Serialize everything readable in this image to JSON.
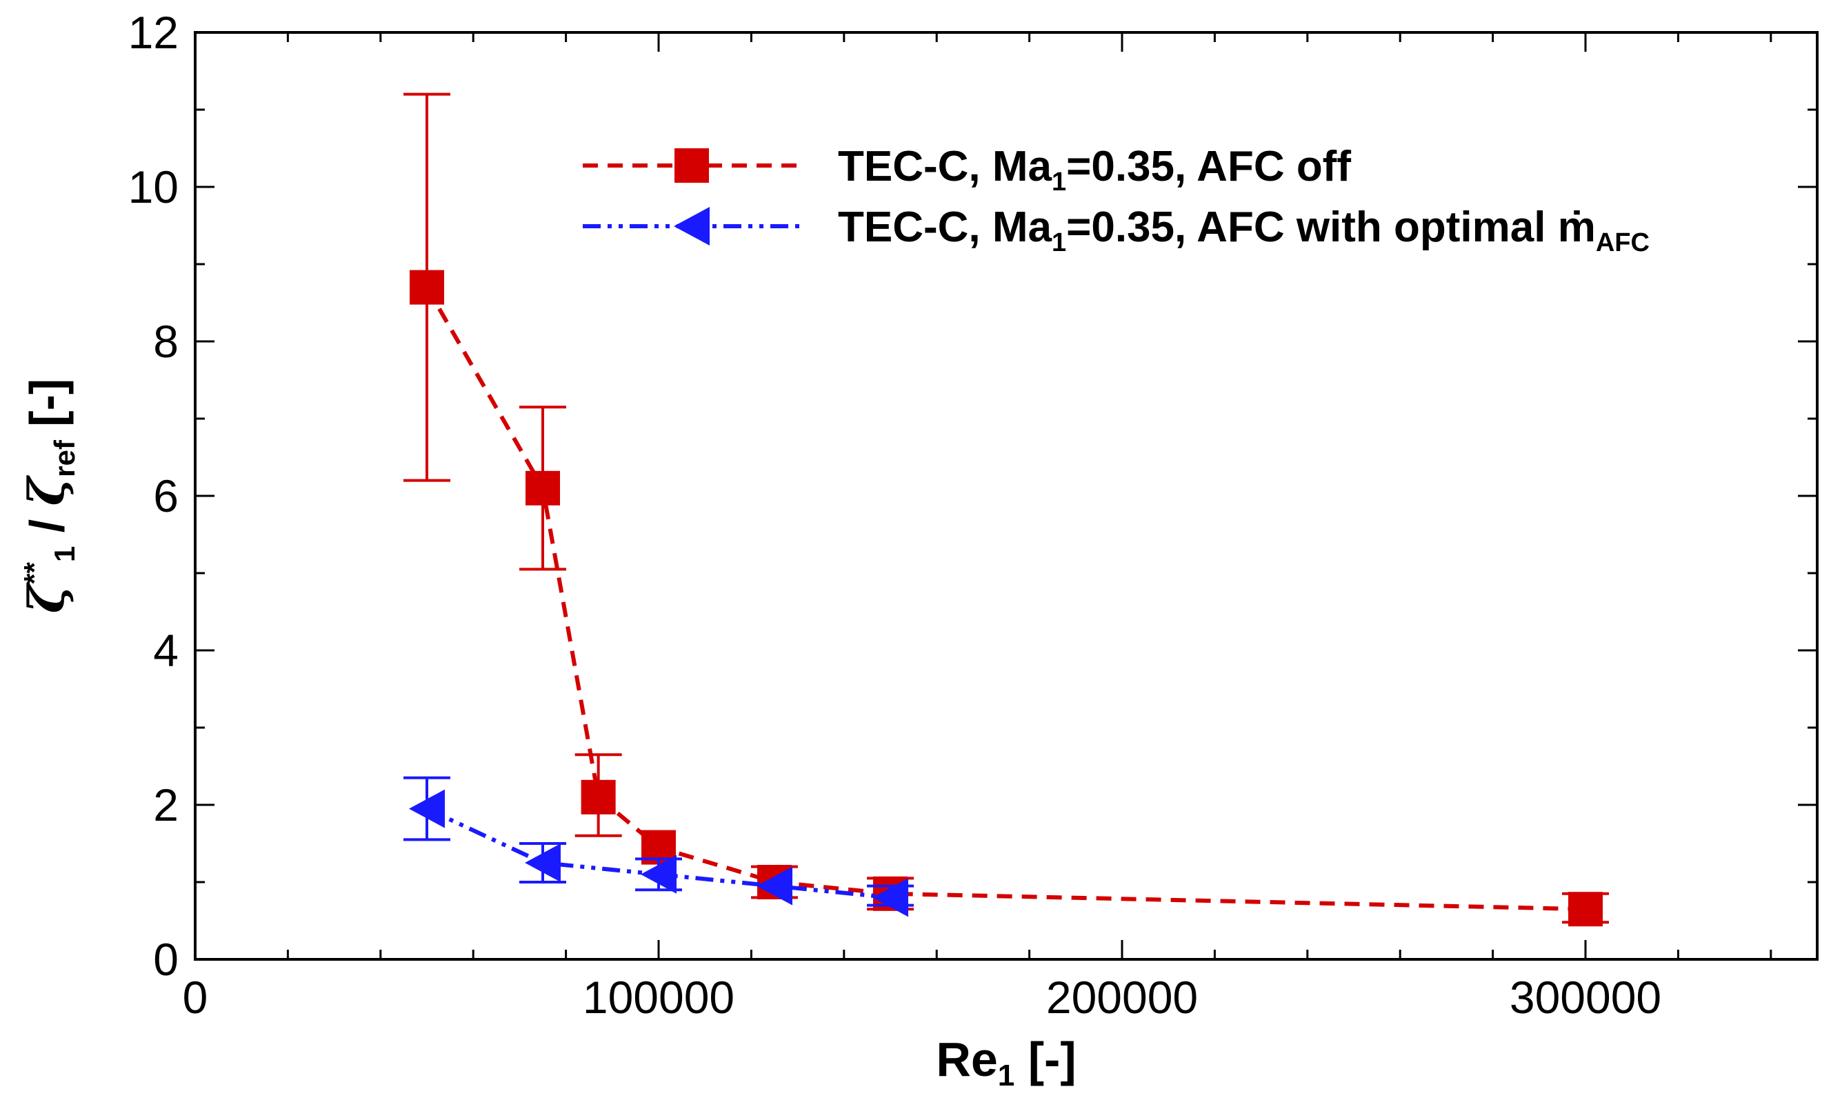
{
  "chart_data": {
    "type": "scatter",
    "xlabel": "Re",
    "xlabel_sub": "1",
    "xlabel_unit": " [-]",
    "ylabel_zeta": "ζ",
    "ylabel_sup": "**",
    "ylabel_sub1": "1",
    "ylabel_sep": " / ",
    "ylabel_sub2": "ref",
    "ylabel_unit": " [-]",
    "xlim": [
      0,
      350000
    ],
    "ylim": [
      0,
      12
    ],
    "x_ticks": [
      0,
      100000,
      200000,
      300000
    ],
    "x_tick_labels": [
      "0",
      "100000",
      "200000",
      "300000"
    ],
    "x_minor_step": 20000,
    "y_ticks": [
      0,
      2,
      4,
      6,
      8,
      10,
      12
    ],
    "y_tick_labels": [
      "0",
      "2",
      "4",
      "6",
      "8",
      "10",
      "12"
    ],
    "y_minor_step": 1,
    "grid": false,
    "legend_position": "top-right",
    "series": [
      {
        "name": "TEC-C, Ma1=0.35, AFC off",
        "label_parts": [
          "TEC-C, Ma",
          "1",
          "=0.35, AFC off"
        ],
        "color": "#d40000",
        "marker": "square",
        "line": "dashed",
        "points": [
          {
            "x": 50000,
            "y": 8.7,
            "lo": 6.2,
            "hi": 11.2
          },
          {
            "x": 75000,
            "y": 6.1,
            "lo": 5.05,
            "hi": 7.15
          },
          {
            "x": 87000,
            "y": 2.1,
            "lo": 1.6,
            "hi": 2.65
          },
          {
            "x": 100000,
            "y": 1.45,
            "lo": 1.45,
            "hi": 1.45
          },
          {
            "x": 125000,
            "y": 1.0,
            "lo": 0.8,
            "hi": 1.2
          },
          {
            "x": 150000,
            "y": 0.85,
            "lo": 0.65,
            "hi": 1.05
          },
          {
            "x": 300000,
            "y": 0.65,
            "lo": 0.48,
            "hi": 0.85
          }
        ]
      },
      {
        "name": "TEC-C, Ma1=0.35, AFC with optimal ṁAFC",
        "label_parts": [
          "TEC-C, Ma",
          "1",
          "=0.35, AFC with optimal ",
          "ṁ",
          "AFC"
        ],
        "color": "#1a1aff",
        "marker": "triangle-left",
        "line": "dash-dot-dot",
        "points": [
          {
            "x": 50000,
            "y": 1.95,
            "lo": 1.55,
            "hi": 2.35
          },
          {
            "x": 75000,
            "y": 1.25,
            "lo": 1.0,
            "hi": 1.5
          },
          {
            "x": 100000,
            "y": 1.1,
            "lo": 0.9,
            "hi": 1.3
          },
          {
            "x": 125000,
            "y": 0.95,
            "lo": 0.95,
            "hi": 0.95
          },
          {
            "x": 150000,
            "y": 0.8,
            "lo": 0.7,
            "hi": 0.95
          }
        ]
      }
    ]
  }
}
